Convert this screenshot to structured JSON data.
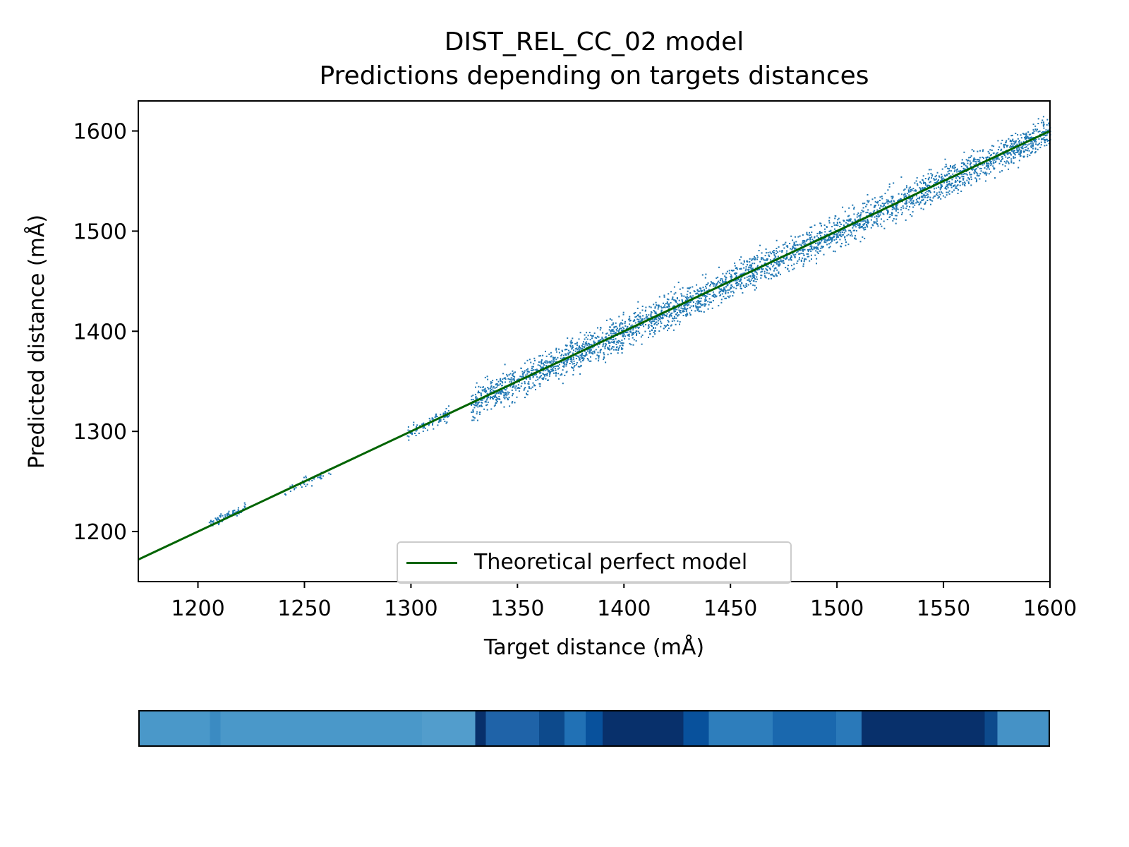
{
  "chart_data": {
    "type": "scatter",
    "title": "DIST_REL_CC_02 model",
    "subtitle": "Predictions depending on targets distances",
    "xlabel": "Target distance (mÅ)",
    "ylabel": "Predicted distance (mÅ)",
    "xlim": [
      1172,
      1600
    ],
    "ylim": [
      1150,
      1630
    ],
    "xticks": [
      1200,
      1250,
      1300,
      1350,
      1400,
      1450,
      1500,
      1550,
      1600
    ],
    "yticks": [
      1200,
      1300,
      1400,
      1500,
      1600
    ],
    "grid": false,
    "legend": {
      "placement": "lower center",
      "entries": [
        "Theoretical perfect model"
      ]
    },
    "reference_line": {
      "name": "Theoretical perfect model",
      "points": [
        [
          1172,
          1172
        ],
        [
          1600,
          1600
        ]
      ],
      "color": "#006400"
    },
    "scatter_series": {
      "color": "#1f77b4",
      "clusters": [
        {
          "x": [
            1205,
            1222
          ],
          "y_offset": [
            -2,
            8
          ]
        },
        {
          "x": [
            1240,
            1262
          ],
          "y_offset": [
            -8,
            6
          ]
        },
        {
          "x": [
            1298,
            1318
          ],
          "y_offset": [
            -8,
            10
          ]
        },
        {
          "x": [
            1328,
            1600
          ],
          "y_offset": [
            -20,
            20
          ]
        }
      ]
    },
    "density_strip": {
      "colormap": "Blues",
      "x_range": [
        1172,
        1600
      ],
      "segments": [
        {
          "from": 1172,
          "to": 1205,
          "color": "#4a98c9"
        },
        {
          "from": 1205,
          "to": 1210,
          "color": "#3b8bc2"
        },
        {
          "from": 1210,
          "to": 1305,
          "color": "#4a98c9"
        },
        {
          "from": 1305,
          "to": 1330,
          "color": "#529dcc"
        },
        {
          "from": 1330,
          "to": 1335,
          "color": "#08306b"
        },
        {
          "from": 1335,
          "to": 1360,
          "color": "#1f63a8"
        },
        {
          "from": 1360,
          "to": 1372,
          "color": "#0d4a8c"
        },
        {
          "from": 1372,
          "to": 1382,
          "color": "#2171b5"
        },
        {
          "from": 1382,
          "to": 1390,
          "color": "#08519c"
        },
        {
          "from": 1390,
          "to": 1428,
          "color": "#08306b"
        },
        {
          "from": 1428,
          "to": 1440,
          "color": "#08519c"
        },
        {
          "from": 1440,
          "to": 1470,
          "color": "#2e7ebc"
        },
        {
          "from": 1470,
          "to": 1500,
          "color": "#1a68ae"
        },
        {
          "from": 1500,
          "to": 1512,
          "color": "#2a79b9"
        },
        {
          "from": 1512,
          "to": 1570,
          "color": "#08306b"
        },
        {
          "from": 1570,
          "to": 1576,
          "color": "#0d4a8c"
        },
        {
          "from": 1576,
          "to": 1600,
          "color": "#4592c6"
        }
      ]
    }
  }
}
